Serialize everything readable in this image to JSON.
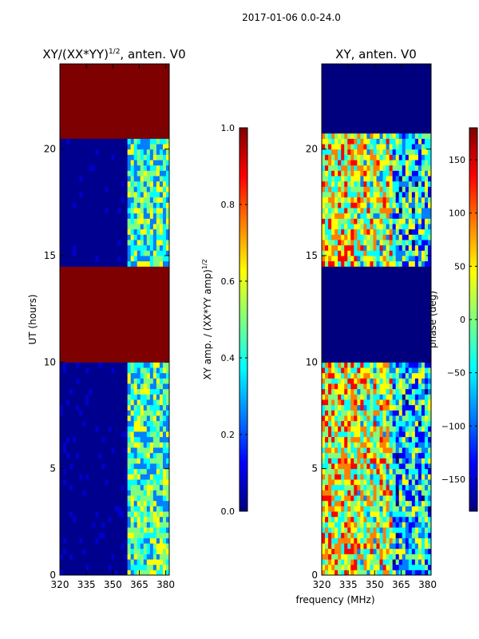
{
  "suptitle": "2017-01-06 0.0-24.0",
  "shared_xlabel": "frequency (MHz)",
  "colormap": [
    "#00007f",
    "#0000ff",
    "#007fff",
    "#00ffff",
    "#7fff7f",
    "#ffff00",
    "#ff7f00",
    "#ff0000",
    "#7f0000"
  ],
  "chart_data": [
    {
      "type": "heatmap",
      "title_prefix": "XY/(XX*YY)",
      "title_exp": "1/2",
      "title_suffix": ", anten. V0",
      "xlabel": "",
      "ylabel": "UT (hours)",
      "xlim": [
        320,
        382
      ],
      "ylim": [
        0,
        24
      ],
      "xticks": [
        320,
        335,
        350,
        365,
        380
      ],
      "yticks": [
        0,
        5,
        10,
        15,
        20
      ],
      "colorbar": {
        "label_main": "XY amp. / (XX*YY amp)",
        "label_exp": "1/2",
        "range": [
          0.0,
          1.0
        ],
        "ticks": [
          "0.0",
          "0.2",
          "0.4",
          "0.6",
          "0.8",
          "1.0"
        ]
      },
      "flagged_hour_ranges": [
        [
          10.0,
          14.5
        ],
        [
          20.5,
          24.0
        ]
      ],
      "band_start_mhz": 358
    },
    {
      "type": "heatmap",
      "title": "XY, anten. V0",
      "xlabel": "frequency (MHz)",
      "ylabel": "",
      "xlim": [
        320,
        382
      ],
      "ylim": [
        0,
        24
      ],
      "xticks": [
        320,
        335,
        350,
        365,
        380
      ],
      "yticks": [
        0,
        5,
        10,
        15,
        20
      ],
      "colorbar": {
        "label_main": "phase (deg)",
        "range": [
          -180,
          180
        ],
        "ticks": [
          "-150",
          "-100",
          "-50",
          "0",
          "50",
          "100",
          "150"
        ]
      },
      "flagged_hour_ranges": [
        [
          10.0,
          14.5
        ],
        [
          20.8,
          24.0
        ]
      ]
    }
  ]
}
